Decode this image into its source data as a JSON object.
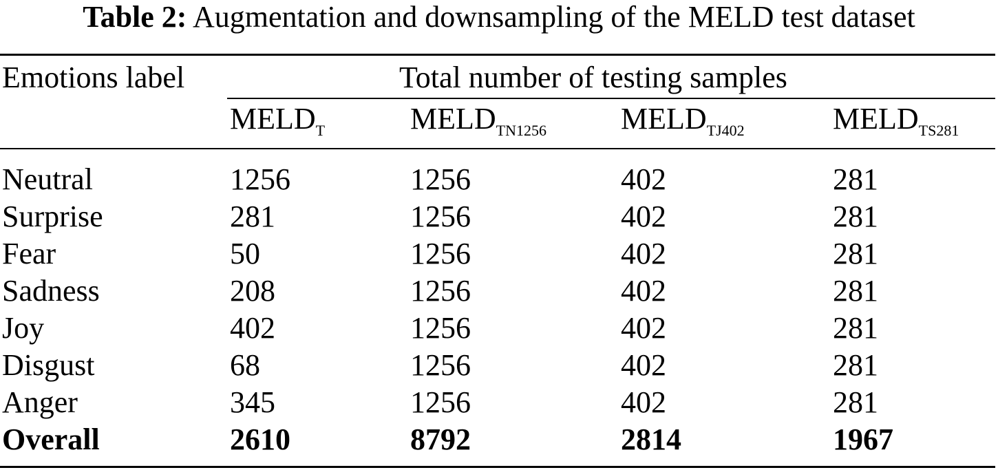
{
  "caption": {
    "label": "Table 2:",
    "text": "Augmentation and downsampling of the MELD test dataset"
  },
  "header": {
    "row_label": "Emotions label",
    "group_label": "Total number of testing samples",
    "columns": [
      {
        "base": "MELD",
        "sub": "T"
      },
      {
        "base": "MELD",
        "sub": "TN1256"
      },
      {
        "base": "MELD",
        "sub": "TJ402"
      },
      {
        "base": "MELD",
        "sub": "TS281"
      }
    ]
  },
  "rows": [
    {
      "label": "Neutral",
      "values": [
        "1256",
        "1256",
        "402",
        "281"
      ]
    },
    {
      "label": "Surprise",
      "values": [
        "281",
        "1256",
        "402",
        "281"
      ]
    },
    {
      "label": "Fear",
      "values": [
        "50",
        "1256",
        "402",
        "281"
      ]
    },
    {
      "label": "Sadness",
      "values": [
        "208",
        "1256",
        "402",
        "281"
      ]
    },
    {
      "label": "Joy",
      "values": [
        "402",
        "1256",
        "402",
        "281"
      ]
    },
    {
      "label": "Disgust",
      "values": [
        "68",
        "1256",
        "402",
        "281"
      ]
    },
    {
      "label": "Anger",
      "values": [
        "345",
        "1256",
        "402",
        "281"
      ]
    }
  ],
  "total": {
    "label": "Overall",
    "values": [
      "2610",
      "8792",
      "2814",
      "1967"
    ]
  }
}
